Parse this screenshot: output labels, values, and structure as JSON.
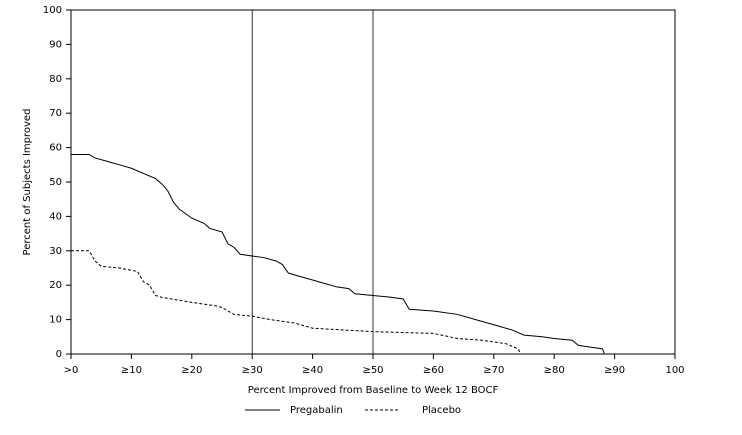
{
  "chart_data": {
    "type": "line",
    "xlabel": "Percent Improved from Baseline to Week 12 BOCF",
    "ylabel": "Percent of Subjects Improved",
    "xlim": [
      0,
      100
    ],
    "ylim": [
      0,
      100
    ],
    "xticks": [
      {
        "value": 0,
        "label": ">0"
      },
      {
        "value": 10,
        "label": "≥10"
      },
      {
        "value": 20,
        "label": "≥20"
      },
      {
        "value": 30,
        "label": "≥30"
      },
      {
        "value": 40,
        "label": "≥40"
      },
      {
        "value": 50,
        "label": "≥50"
      },
      {
        "value": 60,
        "label": "≥60"
      },
      {
        "value": 70,
        "label": "≥70"
      },
      {
        "value": 80,
        "label": "≥80"
      },
      {
        "value": 90,
        "label": "≥90"
      },
      100
    ],
    "yticks": [
      0,
      10,
      20,
      30,
      40,
      50,
      60,
      70,
      80,
      90,
      100
    ],
    "reference_lines_x": [
      30,
      50
    ],
    "series": [
      {
        "name": "Pregabalin",
        "color": "#000000",
        "dash": false,
        "x": [
          0,
          3,
          4,
          6,
          8,
          10,
          12,
          14,
          15,
          16,
          17,
          18,
          20,
          22,
          23,
          25,
          26,
          27,
          28,
          30,
          32,
          34,
          35,
          36,
          38,
          40,
          42,
          44,
          46,
          47,
          50,
          53,
          55,
          56,
          60,
          64,
          67,
          70,
          73,
          75,
          78,
          80,
          83,
          84,
          86,
          88,
          88.3
        ],
        "values": [
          58,
          58,
          57,
          56,
          55,
          54,
          52.5,
          51,
          49.5,
          47.5,
          44,
          42,
          39.5,
          38,
          36.5,
          35.5,
          32,
          31,
          29,
          28.5,
          28,
          27,
          26,
          23.5,
          22.5,
          21.5,
          20.5,
          19.5,
          19,
          17.5,
          17,
          16.5,
          16,
          13,
          12.5,
          11.5,
          10,
          8.5,
          7,
          5.5,
          5,
          4.5,
          4,
          2.5,
          2,
          1.5,
          0
        ]
      },
      {
        "name": "Placebo",
        "color": "#000000",
        "dash": true,
        "x": [
          0,
          3,
          4,
          5,
          8,
          11,
          12,
          13,
          14,
          15,
          20,
          24,
          25,
          27,
          30,
          33,
          37,
          40,
          50,
          60,
          64,
          68,
          72,
          74,
          74.5
        ],
        "values": [
          30,
          30,
          27,
          25.5,
          25,
          24,
          21,
          20,
          17,
          16.5,
          15,
          14,
          13.5,
          11.5,
          11,
          10,
          9,
          7.5,
          6.5,
          6,
          4.5,
          4,
          3,
          1.5,
          0
        ]
      }
    ]
  }
}
